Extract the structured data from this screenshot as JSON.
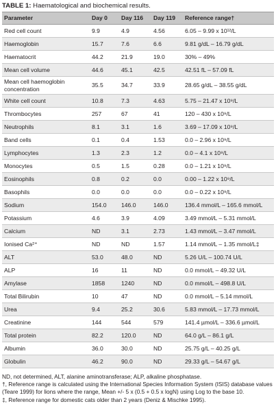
{
  "caption": {
    "label": "TABLE 1:",
    "text": " Haematological and biochemical results."
  },
  "headers": [
    "Parameter",
    "Day 0",
    "Day 116",
    "Day 119",
    "Reference range†"
  ],
  "rows": [
    [
      "Red cell count",
      "9.9",
      "4.9",
      "4.56",
      "6.05 – 9.99 x 10¹²/L"
    ],
    [
      "Haemoglobin",
      "15.7",
      "7.6",
      "6.6",
      "9.81 g/dL – 16.79 g/dL"
    ],
    [
      "Haematocrit",
      "44.2",
      "21.9",
      "19.0",
      "30% – 49%"
    ],
    [
      "Mean cell volume",
      "44.6",
      "45.1",
      "42.5",
      "42.51 fL – 57.09 fL"
    ],
    [
      "Mean cell haemoglobin concentration",
      "35.5",
      "34.7",
      "33.9",
      "28.65 g/dL – 38.55 g/dL"
    ],
    [
      "White cell count",
      "10.8",
      "7.3",
      "4.63",
      "5.75 – 21.47 x 10⁹/L"
    ],
    [
      "Thrombocytes",
      "257",
      "67",
      "41",
      "120 – 430 x 10⁹/L"
    ],
    [
      "Neutrophils",
      "8.1",
      "3.1",
      "1.6",
      "3.69 – 17.09 x 10⁹/L"
    ],
    [
      "Band cells",
      "0.1",
      "0.4",
      "1.53",
      "0.0 – 2.96 x 10⁹/L"
    ],
    [
      "Lymphocytes",
      "1.3",
      "2.3",
      "1.2",
      "0.0 – 4.1 x 10⁹/L"
    ],
    [
      "Monocytes",
      "0.5",
      "1.5",
      "0.28",
      "0.0 – 1.21 x 10⁹/L"
    ],
    [
      "Eosinophils",
      "0.8",
      "0.2",
      "0.0",
      "0.00 – 1.22 x 10⁹/L"
    ],
    [
      "Basophils",
      "0.0",
      "0.0",
      "0.0",
      "0.0 – 0.22 x 10⁹/L"
    ],
    [
      "Sodium",
      "154.0",
      "146.0",
      "146.0",
      "136.4 mmol/L – 165.6 mmol/L"
    ],
    [
      "Potassium",
      "4.6",
      "3.9",
      "4.09",
      "3.49 mmol/L – 5.31 mmol/L"
    ],
    [
      "Calcium",
      "ND",
      "3.1",
      "2.73",
      "1.43 mmol/L – 3.47 mmol/L"
    ],
    [
      "Ionised Ca²⁺",
      "ND",
      "ND",
      "1.57",
      "1.14 mmol/L – 1.35 mmol/L‡"
    ],
    [
      "ALT",
      "53.0",
      "48.0",
      "ND",
      "5.26 U/L – 100.74 U/L"
    ],
    [
      "ALP",
      "16",
      "11",
      "ND",
      "0.0 mmol/L – 49.32 U/L"
    ],
    [
      "Amylase",
      "1858",
      "1240",
      "ND",
      "0.0 mmol/L – 498.8 U/L"
    ],
    [
      "Total Bilirubin",
      "10",
      "47",
      "ND",
      "0.0 mmol/L – 5.14 mmol/L"
    ],
    [
      "Urea",
      "9.4",
      "25.2",
      "30.6",
      "5.83 mmol/L – 17.73 mmol/L"
    ],
    [
      "Creatinine",
      "144",
      "544",
      "579",
      "141.4 µmol/L – 336.6 µmol/L"
    ],
    [
      "Total protein",
      "82.2",
      "120.0",
      "ND",
      "64.0 g/L – 86.1 g/L"
    ],
    [
      "Albumin",
      "36.0",
      "30.0",
      "ND",
      "25.75 g/L – 40.25 g/L"
    ],
    [
      "Globulin",
      "46.2",
      "90.0",
      "ND",
      "29.33 g/L – 54.67 g/L"
    ]
  ],
  "footnotes": [
    "ND, not determined, ALT, alanine aminotransferase; ALP, alkaline phosphatase.",
    "†, Reference range is calculated using the International Species Information System (ISIS) database values (Teare 1999) for lions where the range, Mean +/- 5 x (0.5 + 0.5 x logN) using Log to the base 10.",
    "‡, Reference range for domestic cats older than 2 years (Deniz & Mischke 1995)."
  ]
}
